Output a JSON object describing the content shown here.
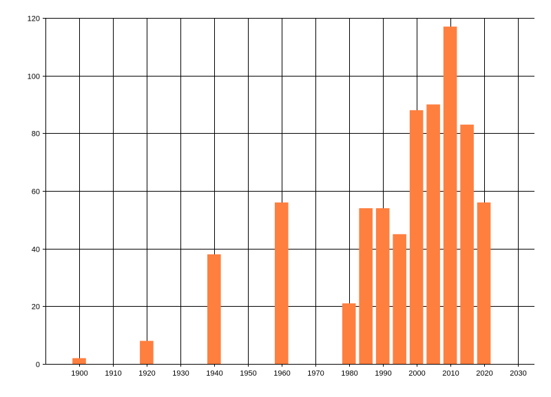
{
  "chart_data": {
    "type": "bar",
    "title": "",
    "xlabel": "",
    "ylabel": "",
    "x": [
      1900,
      1920,
      1940,
      1960,
      1980,
      1985,
      1990,
      1995,
      2000,
      2005,
      2010,
      2015,
      2020
    ],
    "values": [
      2,
      8,
      38,
      56,
      21,
      54,
      54,
      45,
      88,
      90,
      117,
      83,
      56
    ],
    "xlim": [
      1890,
      2035
    ],
    "ylim": [
      0,
      120
    ],
    "x_ticks": [
      1900,
      1910,
      1920,
      1930,
      1940,
      1950,
      1960,
      1970,
      1980,
      1990,
      2000,
      2010,
      2020,
      2030
    ],
    "y_ticks": [
      0,
      20,
      40,
      60,
      80,
      100,
      120
    ],
    "bar_width_years": 4,
    "grid": true,
    "bar_color": "#ff7f3f",
    "grid_color": "#000000"
  }
}
